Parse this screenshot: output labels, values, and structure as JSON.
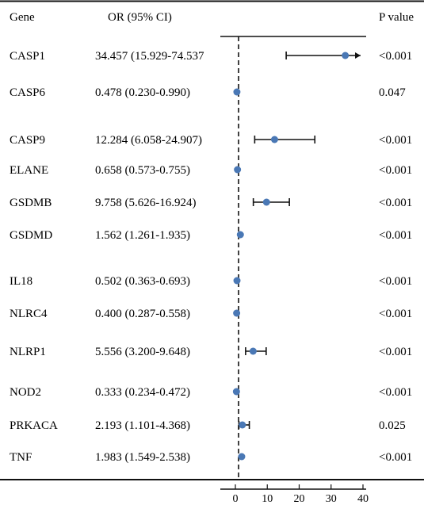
{
  "headers": {
    "gene": "Gene",
    "or": "OR (95% CI)",
    "p": "P value"
  },
  "chart_data": {
    "type": "forest",
    "x_scale": {
      "min": 0,
      "max": 40
    },
    "x_ticks": [
      0,
      10,
      20,
      30,
      40
    ],
    "reference_line": 1,
    "marker_color": "#4a78b5",
    "rows": [
      {
        "gene": "CASP1",
        "or_text": "34.457 (15.929-74.537",
        "p": "<0.001",
        "or": 34.457,
        "lo": 15.929,
        "hi": 74.537,
        "clipped": true
      },
      {
        "gene": "CASP6",
        "or_text": "0.478 (0.230-0.990)",
        "p": "0.047",
        "or": 0.478,
        "lo": 0.23,
        "hi": 0.99
      },
      {
        "gene": "CASP9",
        "or_text": "12.284 (6.058-24.907)",
        "p": "<0.001",
        "or": 12.284,
        "lo": 6.058,
        "hi": 24.907
      },
      {
        "gene": "ELANE",
        "or_text": "0.658 (0.573-0.755)",
        "p": "<0.001",
        "or": 0.658,
        "lo": 0.573,
        "hi": 0.755
      },
      {
        "gene": "GSDMB",
        "or_text": "9.758 (5.626-16.924)",
        "p": "<0.001",
        "or": 9.758,
        "lo": 5.626,
        "hi": 16.924
      },
      {
        "gene": "GSDMD",
        "or_text": "1.562 (1.261-1.935)",
        "p": "<0.001",
        "or": 1.562,
        "lo": 1.261,
        "hi": 1.935
      },
      {
        "gene": "IL18",
        "or_text": "0.502 (0.363-0.693)",
        "p": "<0.001",
        "or": 0.502,
        "lo": 0.363,
        "hi": 0.693
      },
      {
        "gene": "NLRC4",
        "or_text": "0.400 (0.287-0.558)",
        "p": "<0.001",
        "or": 0.4,
        "lo": 0.287,
        "hi": 0.558
      },
      {
        "gene": "NLRP1",
        "or_text": "5.556 (3.200-9.648)",
        "p": "<0.001",
        "or": 5.556,
        "lo": 3.2,
        "hi": 9.648
      },
      {
        "gene": "NOD2",
        "or_text": "0.333 (0.234-0.472)",
        "p": "<0.001",
        "or": 0.333,
        "lo": 0.234,
        "hi": 0.472
      },
      {
        "gene": "PRKACA",
        "or_text": "2.193 (1.101-4.368)",
        "p": "0.025",
        "or": 2.193,
        "lo": 1.101,
        "hi": 4.368
      },
      {
        "gene": "TNF",
        "or_text": "1.983 (1.549-2.538)",
        "p": "<0.001",
        "or": 1.983,
        "lo": 1.549,
        "hi": 2.538
      }
    ]
  }
}
